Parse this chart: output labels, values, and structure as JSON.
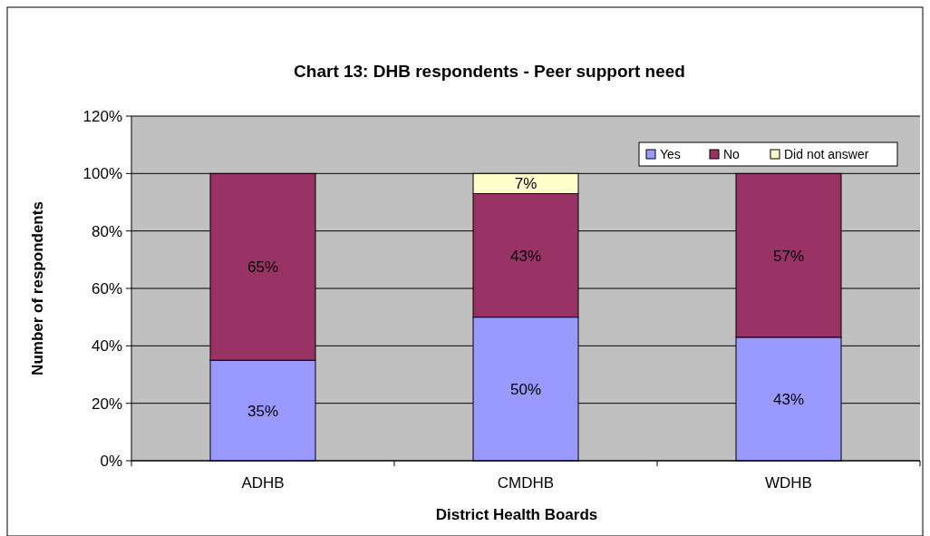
{
  "chart_data": {
    "type": "bar",
    "title": "Chart 13: DHB respondents - Peer support need",
    "xlabel": "District Health Boards",
    "ylabel": "Number of respondents",
    "categories": [
      "ADHB",
      "CMDHB",
      "WDHB"
    ],
    "stacked": true,
    "series": [
      {
        "name": "Yes",
        "color": "#9999ff",
        "values": [
          35,
          50,
          43
        ],
        "value_labels": [
          "35%",
          "50%",
          "43%"
        ]
      },
      {
        "name": "No",
        "color": "#993366",
        "values": [
          65,
          43,
          57
        ],
        "value_labels": [
          "65%",
          "43%",
          "57%"
        ]
      },
      {
        "name": "Did not answer",
        "color": "#ffffcc",
        "values": [
          null,
          7,
          null
        ],
        "value_labels": [
          null,
          "7%",
          null
        ]
      }
    ],
    "ylim": [
      0,
      120
    ],
    "yticks": [
      {
        "value": 0,
        "label": "0%"
      },
      {
        "value": 20,
        "label": "20%"
      },
      {
        "value": 40,
        "label": "40%"
      },
      {
        "value": 60,
        "label": "60%"
      },
      {
        "value": 80,
        "label": "80%"
      },
      {
        "value": 100,
        "label": "100%"
      },
      {
        "value": 120,
        "label": "120%"
      }
    ],
    "grid": "y",
    "legend": "top right"
  }
}
